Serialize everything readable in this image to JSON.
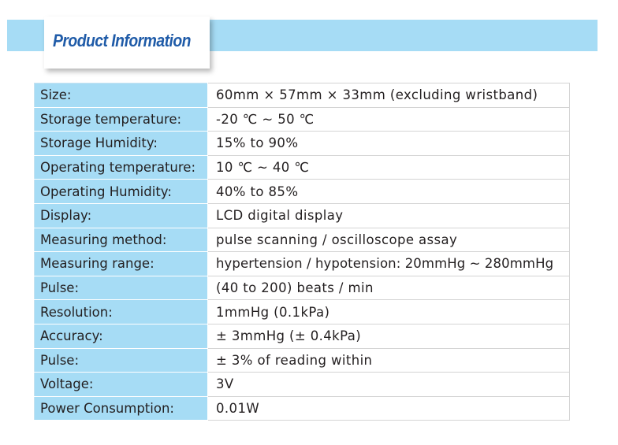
{
  "header": {
    "title": "Product Information"
  },
  "colors": {
    "accent_band": "#a6dcf5",
    "title": "#1f5ba8",
    "text": "#231f20"
  },
  "specs": [
    {
      "label": "Size:",
      "value": "60mm × 57mm × 33mm (excluding wristband)"
    },
    {
      "label": "Storage temperature:",
      "value": "-20 ℃ ~ 50 ℃"
    },
    {
      "label": "Storage Humidity:",
      "value": "15% to 90%"
    },
    {
      "label": "Operating temperature:",
      "value": "10 ℃ ~ 40 ℃"
    },
    {
      "label": "Operating Humidity:",
      "value": "40% to 85%"
    },
    {
      "label": "Display:",
      "value": "LCD digital display"
    },
    {
      "label": "Measuring method:",
      "value": "pulse scanning / oscilloscope assay"
    },
    {
      "label": "Measuring range:",
      "value": "hypertension / hypotension: 20mmHg ~ 280mmHg"
    },
    {
      "label": "Pulse:",
      "value": "(40 to 200) beats / min"
    },
    {
      "label": "Resolution:",
      "value": "1mmHg (0.1kPa)"
    },
    {
      "label": "Accuracy:",
      "value": "± 3mmHg (± 0.4kPa)"
    },
    {
      "label": "Pulse:",
      "value": "± 3% of reading within"
    },
    {
      "label": "Voltage:",
      "value": "3V"
    },
    {
      "label": "Power Consumption:",
      "value": "0.01W"
    }
  ]
}
